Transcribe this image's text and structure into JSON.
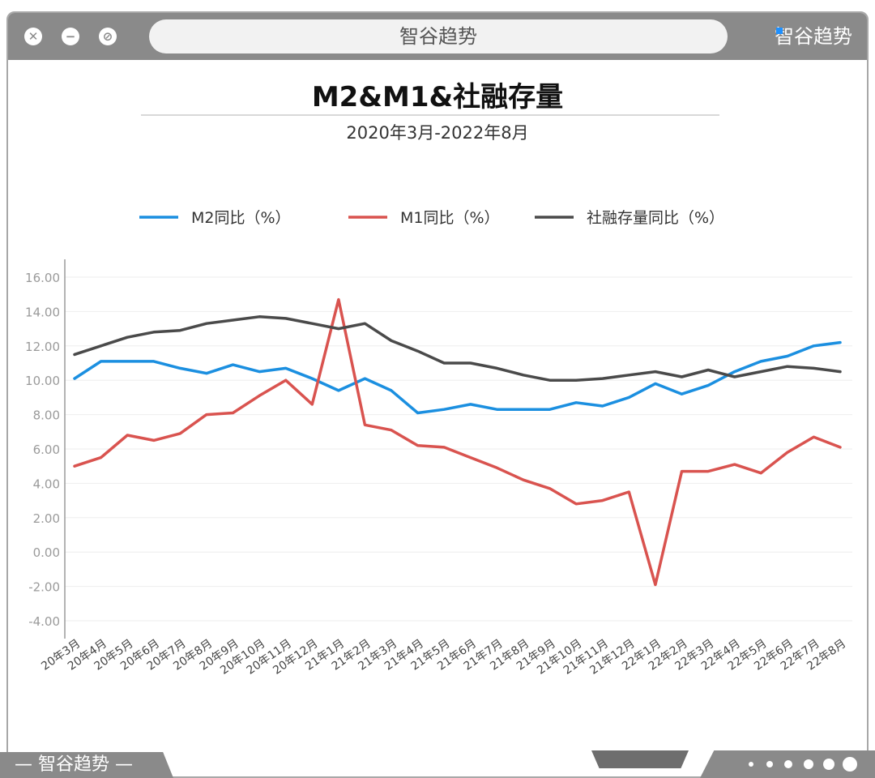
{
  "window": {
    "address_text": "智谷趋势",
    "brand_text": "智谷趋势",
    "footer_brand_text": "— 智谷趋势 —",
    "titlebar_color": "#8a8a8a"
  },
  "chart_data": {
    "type": "line",
    "title": "M2&M1&社融存量",
    "subtitle": "2020年3月-2022年8月",
    "legend_position": "top",
    "grid": true,
    "ylim": [
      -4,
      16
    ],
    "y_ticks": [
      "16.00",
      "14.00",
      "12.00",
      "10.00",
      "8.00",
      "6.00",
      "4.00",
      "2.00",
      "0.00",
      "-2.00",
      "-4.00"
    ],
    "categories": [
      "20年3月",
      "20年4月",
      "20年5月",
      "20年6月",
      "20年7月",
      "20年8月",
      "20年9月",
      "20年10月",
      "20年11月",
      "20年12月",
      "21年1月",
      "21年2月",
      "21年3月",
      "21年4月",
      "21年5月",
      "21年6月",
      "21年7月",
      "21年8月",
      "21年9月",
      "21年10月",
      "21年11月",
      "21年12月",
      "22年1月",
      "22年2月",
      "22年3月",
      "22年4月",
      "22年5月",
      "22年6月",
      "22年7月",
      "22年8月"
    ],
    "series": [
      {
        "name": "M2同比（%）",
        "color": "#1b8fe0",
        "values": [
          10.1,
          11.1,
          11.1,
          11.1,
          10.7,
          10.4,
          10.9,
          10.5,
          10.7,
          10.1,
          9.4,
          10.1,
          9.4,
          8.1,
          8.3,
          8.6,
          8.3,
          8.3,
          8.3,
          8.7,
          8.5,
          9.0,
          9.8,
          9.2,
          9.7,
          10.5,
          11.1,
          11.4,
          12.0,
          12.2
        ]
      },
      {
        "name": "M1同比（%）",
        "color": "#d9534f",
        "values": [
          5.0,
          5.5,
          6.8,
          6.5,
          6.9,
          8.0,
          8.1,
          9.1,
          10.0,
          8.6,
          14.7,
          7.4,
          7.1,
          6.2,
          6.1,
          5.5,
          4.9,
          4.2,
          3.7,
          2.8,
          3.0,
          3.5,
          -1.9,
          4.7,
          4.7,
          5.1,
          4.6,
          5.8,
          6.7,
          6.1
        ]
      },
      {
        "name": "社融存量同比（%）",
        "color": "#4a4a4a",
        "values": [
          11.5,
          12.0,
          12.5,
          12.8,
          12.9,
          13.3,
          13.5,
          13.7,
          13.6,
          13.3,
          13.0,
          13.3,
          12.3,
          11.7,
          11.0,
          11.0,
          10.7,
          10.3,
          10.0,
          10.0,
          10.1,
          10.3,
          10.5,
          10.2,
          10.6,
          10.2,
          10.5,
          10.8,
          10.7,
          10.5
        ]
      }
    ]
  }
}
